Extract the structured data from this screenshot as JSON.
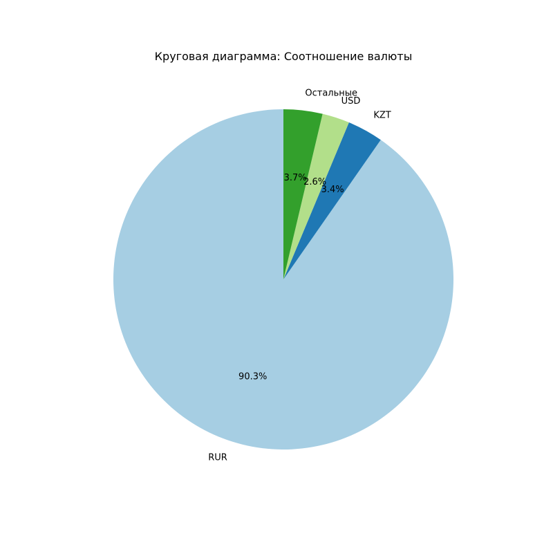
{
  "chart_data": {
    "type": "pie",
    "title": "Круговая диаграмма: Соотношение валюты",
    "start_angle_deg": 90,
    "direction": "counterclockwise",
    "slices": [
      {
        "label": "RUR",
        "value": 90.3,
        "pct_label": "90.3%",
        "color": "#a6cee3"
      },
      {
        "label": "KZT",
        "value": 3.4,
        "pct_label": "3.4%",
        "color": "#1f78b4"
      },
      {
        "label": "USD",
        "value": 2.6,
        "pct_label": "2.6%",
        "color": "#b2df8a"
      },
      {
        "label": "Остальные",
        "value": 3.7,
        "pct_label": "3.7%",
        "color": "#33a02c"
      }
    ]
  }
}
